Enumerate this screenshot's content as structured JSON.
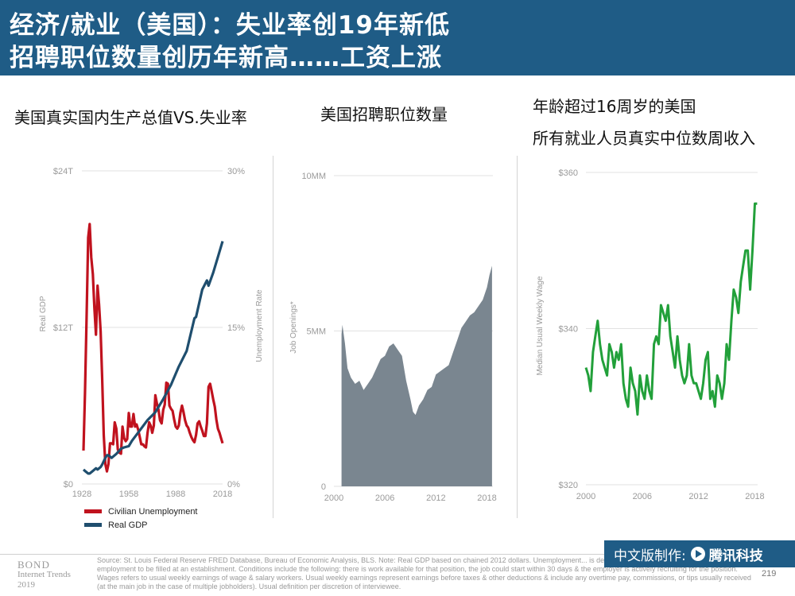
{
  "header": {
    "line1": "经济/就业（美国）：失业率创19年新低",
    "line2": "招聘职位数量创历年新高……工资上涨"
  },
  "panels": {
    "p1_title": "美国真实国内生产总值VS.失业率",
    "p2_title": "美国招聘职位数量",
    "p3_title_line1": "年龄超过16周岁的美国",
    "p3_title_line2": "所有就业人员真实中位数周收入"
  },
  "chart_data": [
    {
      "type": "line",
      "x_ticks": [
        "1928",
        "1958",
        "1988",
        "2018"
      ],
      "xlim": [
        1928,
        2018
      ],
      "y_left": {
        "label": "Real GDP",
        "ticks": [
          "$24T",
          "$12T",
          "$0"
        ],
        "ylim": [
          0,
          24
        ]
      },
      "y_right": {
        "label": "Unemployment Rate",
        "ticks": [
          "30%",
          "15%",
          "0%"
        ],
        "ylim": [
          0,
          30
        ]
      },
      "grid": true,
      "legend_position": "bottom-left",
      "series": [
        {
          "name": "Civilian Unemployment",
          "axis": "right",
          "color": "#c0121e",
          "x": [
            1929,
            1930,
            1931,
            1932,
            1933,
            1934,
            1935,
            1936,
            1937,
            1938,
            1939,
            1940,
            1941,
            1942,
            1943,
            1944,
            1945,
            1946,
            1947,
            1948,
            1949,
            1950,
            1951,
            1952,
            1953,
            1954,
            1955,
            1956,
            1957,
            1958,
            1959,
            1960,
            1961,
            1962,
            1963,
            1964,
            1965,
            1966,
            1967,
            1968,
            1969,
            1970,
            1971,
            1972,
            1973,
            1974,
            1975,
            1976,
            1977,
            1978,
            1979,
            1980,
            1981,
            1982,
            1983,
            1984,
            1985,
            1986,
            1987,
            1988,
            1989,
            1990,
            1991,
            1992,
            1993,
            1994,
            1995,
            1996,
            1997,
            1998,
            1999,
            2000,
            2001,
            2002,
            2003,
            2004,
            2005,
            2006,
            2007,
            2008,
            2009,
            2010,
            2011,
            2012,
            2013,
            2014,
            2015,
            2016,
            2017,
            2018
          ],
          "values": [
            3.2,
            8.7,
            15.9,
            23.6,
            24.9,
            21.7,
            20.1,
            16.9,
            14.3,
            19.0,
            17.2,
            14.6,
            9.9,
            4.7,
            1.9,
            1.2,
            1.9,
            3.9,
            3.9,
            3.8,
            5.9,
            5.3,
            3.3,
            3.0,
            2.9,
            5.5,
            4.4,
            4.1,
            4.3,
            6.8,
            5.5,
            5.5,
            6.7,
            5.5,
            5.7,
            5.2,
            4.5,
            3.8,
            3.8,
            3.6,
            3.5,
            4.9,
            5.9,
            5.6,
            4.9,
            5.6,
            8.5,
            7.7,
            7.1,
            6.1,
            5.8,
            7.1,
            7.6,
            9.7,
            9.6,
            7.5,
            7.2,
            7.0,
            6.2,
            5.5,
            5.3,
            5.6,
            6.8,
            7.5,
            6.9,
            6.1,
            5.6,
            5.4,
            4.9,
            4.5,
            4.2,
            4.0,
            4.7,
            5.8,
            6.0,
            5.5,
            5.1,
            4.6,
            4.6,
            5.8,
            9.3,
            9.6,
            8.9,
            8.1,
            7.4,
            6.2,
            5.3,
            4.9,
            4.4,
            3.9
          ]
        },
        {
          "name": "Real GDP",
          "axis": "left",
          "color": "#1f4e6e",
          "x": [
            1929,
            1930,
            1932,
            1933,
            1935,
            1937,
            1938,
            1940,
            1941,
            1943,
            1944,
            1945,
            1947,
            1950,
            1953,
            1955,
            1958,
            1960,
            1965,
            1970,
            1975,
            1980,
            1985,
            1990,
            1995,
            2000,
            2001,
            2005,
            2008,
            2009,
            2012,
            2015,
            2018
          ],
          "values": [
            1.1,
            1.0,
            0.8,
            0.8,
            1.0,
            1.2,
            1.1,
            1.3,
            1.5,
            2.0,
            2.2,
            2.2,
            2.0,
            2.3,
            2.7,
            2.8,
            2.9,
            3.3,
            4.1,
            4.9,
            5.5,
            6.5,
            7.6,
            9.0,
            10.2,
            12.7,
            12.8,
            14.9,
            15.6,
            15.2,
            16.2,
            17.4,
            18.6
          ]
        }
      ]
    },
    {
      "type": "area",
      "y_label": "Job Openings*",
      "x_ticks": [
        "2000",
        "2006",
        "2012",
        "2018"
      ],
      "xlim": [
        2000,
        2018.7
      ],
      "y_ticks": [
        "10MM",
        "5MM",
        "0"
      ],
      "ylim": [
        0,
        10
      ],
      "grid": true,
      "color": "#7a8690",
      "x": [
        2000.9,
        2001.0,
        2001.3,
        2001.6,
        2002.0,
        2002.5,
        2003.0,
        2003.5,
        2004.0,
        2004.5,
        2005.0,
        2005.5,
        2006.0,
        2006.5,
        2007.0,
        2007.5,
        2008.0,
        2008.5,
        2009.0,
        2009.3,
        2009.6,
        2010.0,
        2010.5,
        2011.0,
        2011.5,
        2012.0,
        2012.5,
        2013.0,
        2013.5,
        2014.0,
        2014.5,
        2015.0,
        2015.5,
        2016.0,
        2016.5,
        2017.0,
        2017.5,
        2018.0,
        2018.3,
        2018.6
      ],
      "values": [
        4.9,
        5.2,
        4.6,
        3.8,
        3.5,
        3.3,
        3.4,
        3.1,
        3.3,
        3.5,
        3.8,
        4.1,
        4.2,
        4.5,
        4.6,
        4.4,
        4.2,
        3.4,
        2.8,
        2.4,
        2.3,
        2.6,
        2.8,
        3.1,
        3.2,
        3.6,
        3.7,
        3.8,
        3.9,
        4.3,
        4.7,
        5.1,
        5.3,
        5.5,
        5.6,
        5.8,
        6.0,
        6.4,
        6.8,
        7.1
      ]
    },
    {
      "type": "line",
      "y_label": "Median Usual Weekly Wage",
      "x_ticks": [
        "2000",
        "2006",
        "2012",
        "2018"
      ],
      "xlim": [
        2000,
        2018.3
      ],
      "y_ticks": [
        "$360",
        "$340",
        "$320"
      ],
      "ylim": [
        320,
        360
      ],
      "grid": true,
      "color": "#22a03a",
      "x": [
        2000.0,
        2000.25,
        2000.5,
        2000.75,
        2001.0,
        2001.25,
        2001.5,
        2001.75,
        2002.0,
        2002.25,
        2002.5,
        2002.75,
        2003.0,
        2003.25,
        2003.5,
        2003.75,
        2004.0,
        2004.25,
        2004.5,
        2004.75,
        2005.0,
        2005.25,
        2005.5,
        2005.75,
        2006.0,
        2006.25,
        2006.5,
        2006.75,
        2007.0,
        2007.25,
        2007.5,
        2007.75,
        2008.0,
        2008.25,
        2008.5,
        2008.75,
        2009.0,
        2009.25,
        2009.5,
        2009.75,
        2010.0,
        2010.25,
        2010.5,
        2010.75,
        2011.0,
        2011.25,
        2011.5,
        2011.75,
        2012.0,
        2012.25,
        2012.5,
        2012.75,
        2013.0,
        2013.25,
        2013.5,
        2013.75,
        2014.0,
        2014.25,
        2014.5,
        2014.75,
        2015.0,
        2015.25,
        2015.5,
        2015.75,
        2016.0,
        2016.25,
        2016.5,
        2016.75,
        2017.0,
        2017.25,
        2017.5,
        2017.75,
        2018.0,
        2018.25
      ],
      "values": [
        335,
        334,
        332,
        337,
        339,
        341,
        338,
        336,
        335,
        334,
        338,
        337,
        335,
        337,
        336,
        338,
        333,
        331,
        330,
        335,
        333,
        332,
        329,
        334,
        332,
        331,
        334,
        332,
        331,
        338,
        339,
        338,
        343,
        342,
        341,
        343,
        339,
        337,
        335,
        339,
        336,
        334,
        333,
        334,
        338,
        334,
        333,
        333,
        332,
        331,
        333,
        336,
        337,
        331,
        332,
        330,
        334,
        333,
        331,
        333,
        338,
        336,
        341,
        345,
        344,
        342,
        346,
        348,
        350,
        350,
        345,
        350,
        356,
        356
      ]
    }
  ],
  "legend": {
    "items": [
      {
        "label": "Civilian Unemployment",
        "color": "#c0121e"
      },
      {
        "label": "Real GDP",
        "color": "#1f4e6e"
      }
    ]
  },
  "footer": {
    "bond_line1": "BOND",
    "bond_line2": "Internet Trends",
    "bond_line3": "2019",
    "source": "Source: St. Louis Federal Reserve FRED Database, Bureau of Economic Analysis, BLS. Note: Real GDP based on chained 2012 dollars. Unemployment... is defined as a non-farm specific position of employment to be filled at an establishment. Conditions include the following: there is work available for that position, the job could start within 30 days & the employer is actively recruiting for the position. Wages refers to usual weekly earnings of wage & salary workers. Usual weekly earnings represent earnings before taxes & other deductions & include any overtime pay, commissions, or tips usually received (at the main job in the case of multiple jobholders). Usual definition per discretion of interviewee.",
    "page_number": "219",
    "badge_label": "中文版制作:",
    "badge_brand": "腾讯科技"
  }
}
